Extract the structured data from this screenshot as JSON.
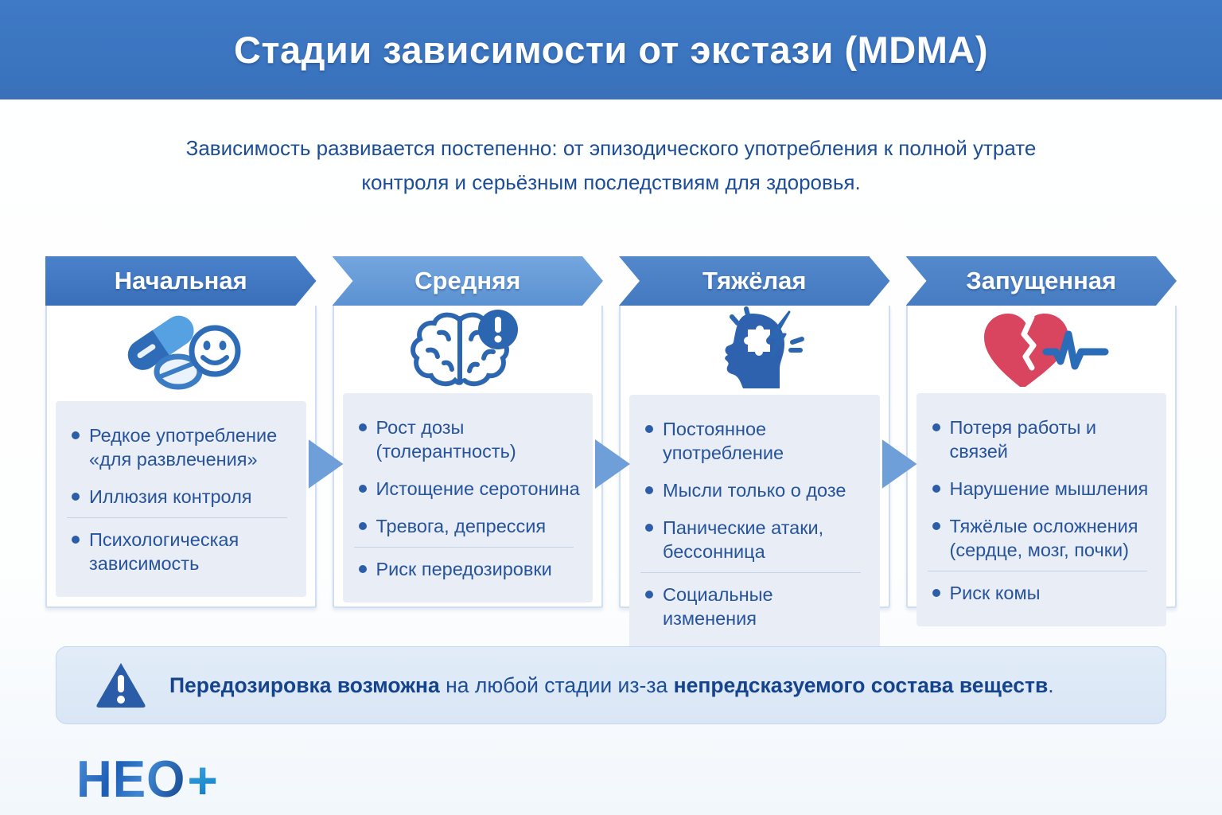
{
  "header": {
    "title": "Стадии зависимости от экстази (MDMA)"
  },
  "intro": {
    "text": "Зависимость развивается постепенно: от эпизодического употребления к полной утрате контроля и серьёзным последствиям для здоровья."
  },
  "stages": [
    {
      "label": "Начальная",
      "icon": "pills-smiley-icon",
      "items": [
        "Редкое употребление «для развлечения»",
        "Иллюзия контроля",
        "Психологическая зависимость"
      ]
    },
    {
      "label": "Средняя",
      "icon": "brain-alert-icon",
      "items": [
        "Рост дозы (толерантность)",
        "Истощение серотонина",
        "Тревога, депрессия",
        "Риск передозировки"
      ]
    },
    {
      "label": "Тяжёлая",
      "icon": "head-lightning-icon",
      "items": [
        "Постоянное употребление",
        "Мысли только о дозе",
        "Панические атаки, бессонница",
        "Социальные изменения"
      ]
    },
    {
      "label": "Запущенная",
      "icon": "broken-heart-ekg-icon",
      "items": [
        "Потеря работы и связей",
        "Нарушение мышления",
        "Тяжёлые осложнения (сердце, мозг, почки)",
        "Риск комы"
      ]
    }
  ],
  "warning": {
    "icon": "warning-triangle-icon",
    "segments": [
      {
        "text": "Передозировка возможна",
        "bold": true
      },
      {
        "text": " на любой стадии из-за ",
        "bold": false
      },
      {
        "text": "непредсказуемого состава веществ",
        "bold": true
      },
      {
        "text": ".",
        "bold": false
      }
    ]
  },
  "logo": {
    "text": "НЕО",
    "plus": "+"
  },
  "colors": {
    "header_bar": "#3b74bf",
    "chevron_initial": "#3f76c0",
    "chevron_middle": "#639bd7",
    "chevron_severe": "#4a80c4",
    "chevron_advanced": "#4c82c6",
    "panel_bg": "#e9eef6",
    "text_blue": "#26539b",
    "warning_bg": "#dce8f6",
    "heart_red": "#d9455f",
    "icon_blue": "#2d66b0"
  }
}
